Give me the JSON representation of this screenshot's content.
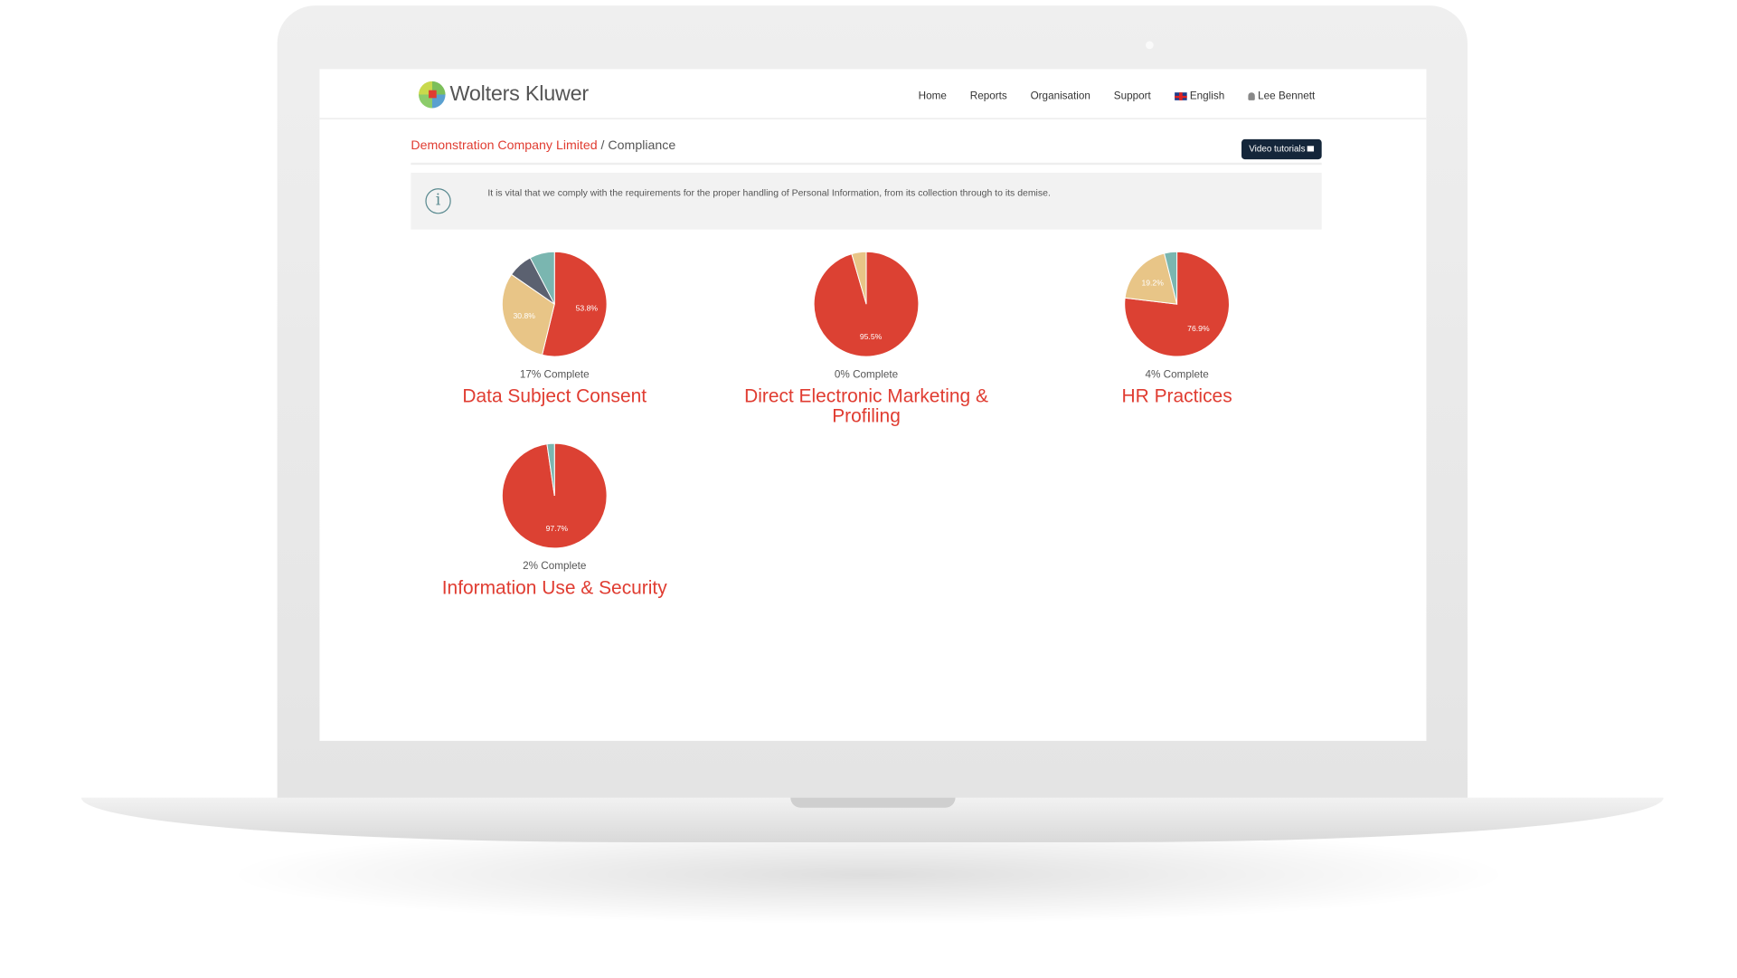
{
  "nav": {
    "brand": "Wolters Kluwer",
    "items": [
      "Home",
      "Reports",
      "Organisation",
      "Support"
    ],
    "language": "English",
    "user": "Lee Bennett"
  },
  "breadcrumb": {
    "company": "Demonstration Company Limited",
    "separator": " / ",
    "page": "Compliance"
  },
  "video_button": "Video tutorials",
  "info_text": "It is vital that we comply with the requirements for the proper handling of Personal Information, from its collection through to its demise.",
  "colors": {
    "red": "#dc4133",
    "tan": "#e8c587",
    "dark": "#5b6170",
    "teal": "#7ab6b0"
  },
  "chart_data": [
    {
      "type": "pie",
      "title": "Data Subject Consent",
      "caption": "17% Complete",
      "slices": [
        {
          "value": 53.8,
          "color": "#dc4133",
          "label": "53.8%"
        },
        {
          "value": 30.8,
          "color": "#e8c587",
          "label": "30.8%"
        },
        {
          "value": 7.7,
          "color": "#5b6170"
        },
        {
          "value": 7.7,
          "color": "#7ab6b0"
        }
      ]
    },
    {
      "type": "pie",
      "title": "Direct Electronic Marketing & Profiling",
      "caption": "0% Complete",
      "slices": [
        {
          "value": 95.5,
          "color": "#dc4133",
          "label": "95.5%"
        },
        {
          "value": 4.5,
          "color": "#e8c587"
        }
      ]
    },
    {
      "type": "pie",
      "title": "HR Practices",
      "caption": "4% Complete",
      "slices": [
        {
          "value": 76.9,
          "color": "#dc4133",
          "label": "76.9%"
        },
        {
          "value": 19.2,
          "color": "#e8c587",
          "label": "19.2%"
        },
        {
          "value": 3.9,
          "color": "#7ab6b0"
        }
      ]
    },
    {
      "type": "pie",
      "title": "Information Use & Security",
      "caption": "2% Complete",
      "slices": [
        {
          "value": 97.7,
          "color": "#dc4133",
          "label": "97.7%"
        },
        {
          "value": 2.3,
          "color": "#7ab6b0"
        }
      ]
    }
  ]
}
